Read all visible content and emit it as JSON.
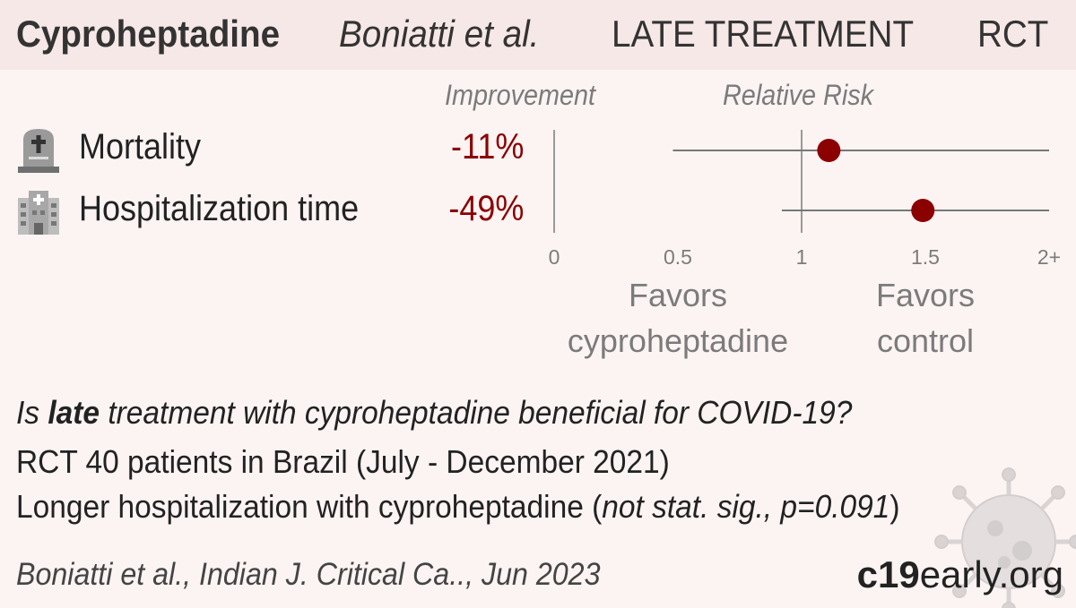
{
  "header": {
    "drug": "Cyproheptadine",
    "author": "Boniatti et al.",
    "stage": "LATE TREATMENT",
    "type": "RCT"
  },
  "columns": {
    "improvement": "Improvement",
    "relative_risk": "Relative Risk"
  },
  "outcomes": [
    {
      "name": "Mortality",
      "improvement": "-11%",
      "icon": "tombstone-icon"
    },
    {
      "name": "Hospitalization time",
      "improvement": "-49%",
      "icon": "hospital-icon"
    }
  ],
  "chart_data": {
    "type": "forest",
    "x_ticks": [
      "0",
      "0.5",
      "1",
      "1.5",
      "2+"
    ],
    "xlim": [
      0,
      2
    ],
    "reference": 1,
    "rows": [
      {
        "name": "Mortality",
        "rr": 1.11,
        "ci_low": 0.48,
        "ci_high": 2.0
      },
      {
        "name": "Hospitalization time",
        "rr": 1.49,
        "ci_low": 0.92,
        "ci_high": 2.0
      }
    ],
    "favors_left": [
      "Favors",
      "cyproheptadine"
    ],
    "favors_right": [
      "Favors",
      "control"
    ],
    "colors": {
      "point": "#8b0000",
      "line": "#777777"
    }
  },
  "summary": {
    "question_pre": "Is ",
    "question_bold": "late",
    "question_post": " treatment with cyproheptadine beneficial for COVID-19?",
    "line2": "RCT 40 patients in Brazil (July - December 2021)",
    "line3_pre": "Longer hospitalization with cyproheptadine (",
    "line3_italic": "not stat. sig., p=0.091",
    "line3_post": ")"
  },
  "footer": {
    "citation": "Boniatti et al., Indian J. Critical Ca.., Jun 2023",
    "brand_bold": "c19",
    "brand_rest": "early.org"
  }
}
